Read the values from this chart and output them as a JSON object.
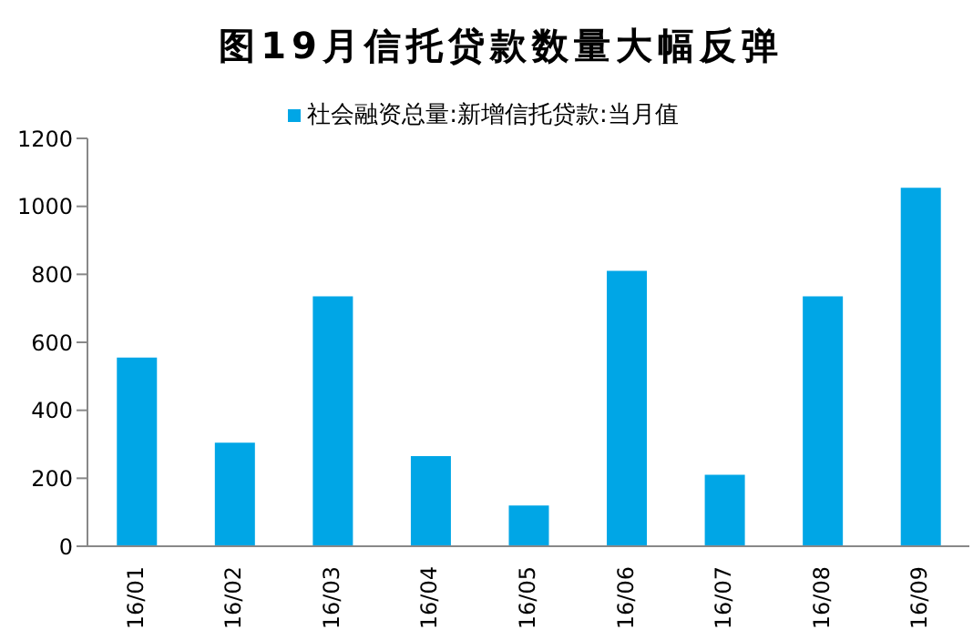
{
  "chart_data": {
    "type": "bar",
    "title": "图19月信托贷款数量大幅反弹",
    "categories": [
      "16/01",
      "16/02",
      "16/03",
      "16/04",
      "16/05",
      "16/06",
      "16/07",
      "16/08",
      "16/09"
    ],
    "series": [
      {
        "name": "社会融资总量:新增信托贷款:当月值",
        "color": "#00a6e6",
        "values": [
          555,
          305,
          735,
          265,
          120,
          810,
          210,
          735,
          1055
        ]
      }
    ],
    "ylim": [
      0,
      1200
    ],
    "yticks": [
      0,
      200,
      400,
      600,
      800,
      1000,
      1200
    ],
    "grid": false,
    "legend": "top"
  }
}
